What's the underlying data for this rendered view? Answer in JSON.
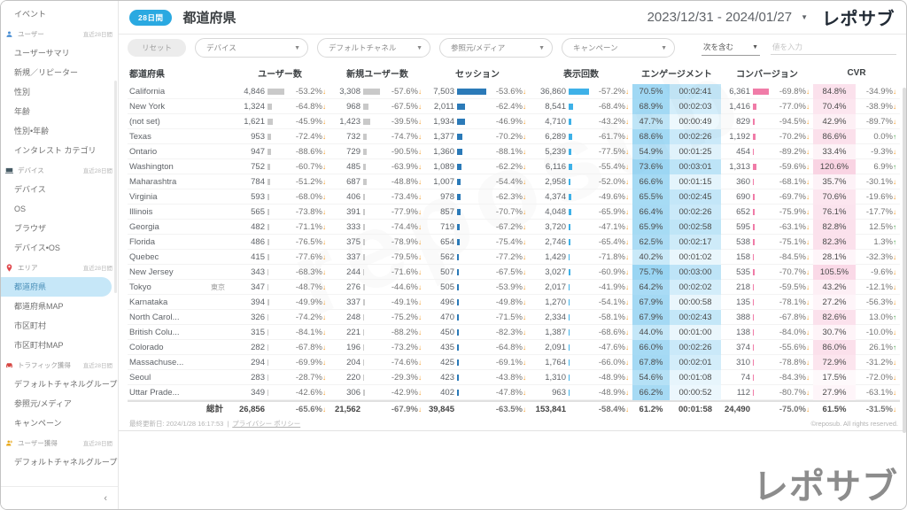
{
  "header": {
    "badge": "28日間",
    "title": "都道府県",
    "date_range": "2023/12/31 - 2024/01/27",
    "logo": "レポサブ"
  },
  "filters": {
    "reset": "リセット",
    "dropdowns": [
      "デバイス",
      "デフォルトチャネル",
      "参照元/メディア",
      "キャンペーン"
    ],
    "condition": "次を含む",
    "value_placeholder": "値を入力"
  },
  "sidebar": {
    "collapse": "‹",
    "items": [
      {
        "type": "link",
        "label": "イベント"
      },
      {
        "type": "section",
        "label": "ユーザー",
        "icon": "user-icon",
        "period": "直近28日間"
      },
      {
        "type": "link",
        "label": "ユーザーサマリ"
      },
      {
        "type": "link",
        "label": "新規／リピーター"
      },
      {
        "type": "link",
        "label": "性別"
      },
      {
        "type": "link",
        "label": "年齢"
      },
      {
        "type": "link",
        "label": "性別•年齢"
      },
      {
        "type": "link",
        "label": "インタレスト カテゴリ"
      },
      {
        "type": "section",
        "label": "デバイス",
        "icon": "device-icon",
        "period": "直近28日間"
      },
      {
        "type": "link",
        "label": "デバイス"
      },
      {
        "type": "link",
        "label": "OS"
      },
      {
        "type": "link",
        "label": "ブラウザ"
      },
      {
        "type": "link",
        "label": "デバイス•OS"
      },
      {
        "type": "section",
        "label": "エリア",
        "icon": "area-pin-icon",
        "period": "直近28日間"
      },
      {
        "type": "link",
        "label": "都道府県",
        "selected": true
      },
      {
        "type": "link",
        "label": "都道府県MAP"
      },
      {
        "type": "link",
        "label": "市区町村"
      },
      {
        "type": "link",
        "label": "市区町村MAP"
      },
      {
        "type": "section",
        "label": "トラフィック獲得",
        "icon": "traffic-icon",
        "period": "直近28日間"
      },
      {
        "type": "link",
        "label": "デフォルトチャネルグループ"
      },
      {
        "type": "link",
        "label": "参照元/メディア"
      },
      {
        "type": "link",
        "label": "キャンペーン"
      },
      {
        "type": "section",
        "label": "ユーザー獲得",
        "icon": "user-acquisition-icon",
        "period": "直近28日間"
      },
      {
        "type": "link",
        "label": "デフォルトチャネルグループ"
      }
    ]
  },
  "table": {
    "headers": {
      "state": "都道府県",
      "users": "ユーザー数",
      "new_users": "新規ユーザー数",
      "sessions": "セッション",
      "views": "表示回数",
      "engagement": "エンゲージメント",
      "conversion": "コンバージョン",
      "cvr": "CVR"
    },
    "rows": [
      {
        "name": "California",
        "users": "4,846",
        "users_d": "-53.2%",
        "new_users": "3,308",
        "new_d": "-57.6%",
        "sessions": "7,503",
        "sess_d": "-53.6%",
        "views": "36,860",
        "views_d": "-57.2%",
        "eng": "70.5%",
        "time": "00:02:41",
        "conv": "6,361",
        "conv_d": "-69.8%",
        "cvr": "84.8%",
        "cvr_d": "-34.9%",
        "cvr_dir": "down"
      },
      {
        "name": "New York",
        "users": "1,324",
        "users_d": "-64.8%",
        "new_users": "968",
        "new_d": "-67.5%",
        "sessions": "2,011",
        "sess_d": "-62.4%",
        "views": "8,541",
        "views_d": "-68.4%",
        "eng": "68.9%",
        "time": "00:02:03",
        "conv": "1,416",
        "conv_d": "-77.0%",
        "cvr": "70.4%",
        "cvr_d": "-38.9%",
        "cvr_dir": "down"
      },
      {
        "name": "(not set)",
        "users": "1,621",
        "users_d": "-45.9%",
        "new_users": "1,423",
        "new_d": "-39.5%",
        "sessions": "1,934",
        "sess_d": "-46.9%",
        "views": "4,710",
        "views_d": "-43.2%",
        "eng": "47.7%",
        "time": "00:00:49",
        "conv": "829",
        "conv_d": "-94.5%",
        "cvr": "42.9%",
        "cvr_d": "-89.7%",
        "cvr_dir": "down"
      },
      {
        "name": "Texas",
        "users": "953",
        "users_d": "-72.4%",
        "new_users": "732",
        "new_d": "-74.7%",
        "sessions": "1,377",
        "sess_d": "-70.2%",
        "views": "6,289",
        "views_d": "-61.7%",
        "eng": "68.6%",
        "time": "00:02:26",
        "conv": "1,192",
        "conv_d": "-70.2%",
        "cvr": "86.6%",
        "cvr_d": "0.0%",
        "cvr_dir": "up"
      },
      {
        "name": "Ontario",
        "users": "947",
        "users_d": "-88.6%",
        "new_users": "729",
        "new_d": "-90.5%",
        "sessions": "1,360",
        "sess_d": "-88.1%",
        "views": "5,239",
        "views_d": "-77.5%",
        "eng": "54.9%",
        "time": "00:01:25",
        "conv": "454",
        "conv_d": "-89.2%",
        "cvr": "33.4%",
        "cvr_d": "-9.3%",
        "cvr_dir": "down"
      },
      {
        "name": "Washington",
        "users": "752",
        "users_d": "-60.7%",
        "new_users": "485",
        "new_d": "-63.9%",
        "sessions": "1,089",
        "sess_d": "-62.2%",
        "views": "6,116",
        "views_d": "-55.4%",
        "eng": "73.6%",
        "time": "00:03:01",
        "conv": "1,313",
        "conv_d": "-59.6%",
        "cvr": "120.6%",
        "cvr_d": "6.9%",
        "cvr_dir": "up"
      },
      {
        "name": "Maharashtra",
        "users": "784",
        "users_d": "-51.2%",
        "new_users": "687",
        "new_d": "-48.8%",
        "sessions": "1,007",
        "sess_d": "-54.4%",
        "views": "2,958",
        "views_d": "-52.0%",
        "eng": "66.6%",
        "time": "00:01:15",
        "conv": "360",
        "conv_d": "-68.1%",
        "cvr": "35.7%",
        "cvr_d": "-30.1%",
        "cvr_dir": "down"
      },
      {
        "name": "Virginia",
        "users": "593",
        "users_d": "-68.0%",
        "new_users": "406",
        "new_d": "-73.4%",
        "sessions": "978",
        "sess_d": "-62.3%",
        "views": "4,374",
        "views_d": "-49.6%",
        "eng": "65.5%",
        "time": "00:02:45",
        "conv": "690",
        "conv_d": "-69.7%",
        "cvr": "70.6%",
        "cvr_d": "-19.6%",
        "cvr_dir": "down"
      },
      {
        "name": "Illinois",
        "users": "565",
        "users_d": "-73.8%",
        "new_users": "391",
        "new_d": "-77.9%",
        "sessions": "857",
        "sess_d": "-70.7%",
        "views": "4,048",
        "views_d": "-65.9%",
        "eng": "66.4%",
        "time": "00:02:26",
        "conv": "652",
        "conv_d": "-75.9%",
        "cvr": "76.1%",
        "cvr_d": "-17.7%",
        "cvr_dir": "down"
      },
      {
        "name": "Georgia",
        "users": "482",
        "users_d": "-71.1%",
        "new_users": "333",
        "new_d": "-74.4%",
        "sessions": "719",
        "sess_d": "-67.2%",
        "views": "3,720",
        "views_d": "-47.1%",
        "eng": "65.9%",
        "time": "00:02:58",
        "conv": "595",
        "conv_d": "-63.1%",
        "cvr": "82.8%",
        "cvr_d": "12.5%",
        "cvr_dir": "up"
      },
      {
        "name": "Florida",
        "users": "486",
        "users_d": "-76.5%",
        "new_users": "375",
        "new_d": "-78.9%",
        "sessions": "654",
        "sess_d": "-75.4%",
        "views": "2,746",
        "views_d": "-65.4%",
        "eng": "62.5%",
        "time": "00:02:17",
        "conv": "538",
        "conv_d": "-75.1%",
        "cvr": "82.3%",
        "cvr_d": "1.3%",
        "cvr_dir": "up"
      },
      {
        "name": "Quebec",
        "users": "415",
        "users_d": "-77.6%",
        "new_users": "337",
        "new_d": "-79.5%",
        "sessions": "562",
        "sess_d": "-77.2%",
        "views": "1,429",
        "views_d": "-71.8%",
        "eng": "40.2%",
        "time": "00:01:02",
        "conv": "158",
        "conv_d": "-84.5%",
        "cvr": "28.1%",
        "cvr_d": "-32.3%",
        "cvr_dir": "down"
      },
      {
        "name": "New Jersey",
        "users": "343",
        "users_d": "-68.3%",
        "new_users": "244",
        "new_d": "-71.6%",
        "sessions": "507",
        "sess_d": "-67.5%",
        "views": "3,027",
        "views_d": "-60.9%",
        "eng": "75.7%",
        "time": "00:03:00",
        "conv": "535",
        "conv_d": "-70.7%",
        "cvr": "105.5%",
        "cvr_d": "-9.6%",
        "cvr_dir": "down"
      },
      {
        "name": "Tokyo",
        "sub": "東京",
        "users": "347",
        "users_d": "-48.7%",
        "new_users": "276",
        "new_d": "-44.6%",
        "sessions": "505",
        "sess_d": "-53.9%",
        "views": "2,017",
        "views_d": "-41.9%",
        "eng": "64.2%",
        "time": "00:02:02",
        "conv": "218",
        "conv_d": "-59.5%",
        "cvr": "43.2%",
        "cvr_d": "-12.1%",
        "cvr_dir": "down"
      },
      {
        "name": "Karnataka",
        "users": "394",
        "users_d": "-49.9%",
        "new_users": "337",
        "new_d": "-49.1%",
        "sessions": "496",
        "sess_d": "-49.8%",
        "views": "1,270",
        "views_d": "-54.1%",
        "eng": "67.9%",
        "time": "00:00:58",
        "conv": "135",
        "conv_d": "-78.1%",
        "cvr": "27.2%",
        "cvr_d": "-56.3%",
        "cvr_dir": "down"
      },
      {
        "name": "North Carol...",
        "users": "326",
        "users_d": "-74.2%",
        "new_users": "248",
        "new_d": "-75.2%",
        "sessions": "470",
        "sess_d": "-71.5%",
        "views": "2,334",
        "views_d": "-58.1%",
        "eng": "67.9%",
        "time": "00:02:43",
        "conv": "388",
        "conv_d": "-67.8%",
        "cvr": "82.6%",
        "cvr_d": "13.0%",
        "cvr_dir": "up"
      },
      {
        "name": "British Colu...",
        "users": "315",
        "users_d": "-84.1%",
        "new_users": "221",
        "new_d": "-88.2%",
        "sessions": "450",
        "sess_d": "-82.3%",
        "views": "1,387",
        "views_d": "-68.6%",
        "eng": "44.0%",
        "time": "00:01:00",
        "conv": "138",
        "conv_d": "-84.0%",
        "cvr": "30.7%",
        "cvr_d": "-10.0%",
        "cvr_dir": "down"
      },
      {
        "name": "Colorado",
        "users": "282",
        "users_d": "-67.8%",
        "new_users": "196",
        "new_d": "-73.2%",
        "sessions": "435",
        "sess_d": "-64.8%",
        "views": "2,091",
        "views_d": "-47.6%",
        "eng": "66.0%",
        "time": "00:02:26",
        "conv": "374",
        "conv_d": "-55.6%",
        "cvr": "86.0%",
        "cvr_d": "26.1%",
        "cvr_dir": "up"
      },
      {
        "name": "Massachuse...",
        "users": "294",
        "users_d": "-69.9%",
        "new_users": "204",
        "new_d": "-74.6%",
        "sessions": "425",
        "sess_d": "-69.1%",
        "views": "1,764",
        "views_d": "-66.0%",
        "eng": "67.8%",
        "time": "00:02:01",
        "conv": "310",
        "conv_d": "-78.8%",
        "cvr": "72.9%",
        "cvr_d": "-31.2%",
        "cvr_dir": "down"
      },
      {
        "name": "Seoul",
        "users": "283",
        "users_d": "-28.7%",
        "new_users": "220",
        "new_d": "-29.3%",
        "sessions": "423",
        "sess_d": "-43.8%",
        "views": "1,310",
        "views_d": "-48.9%",
        "eng": "54.6%",
        "time": "00:01:08",
        "conv": "74",
        "conv_d": "-84.3%",
        "cvr": "17.5%",
        "cvr_d": "-72.0%",
        "cvr_dir": "down"
      },
      {
        "name": "Uttar Prade...",
        "users": "349",
        "users_d": "-42.6%",
        "new_users": "306",
        "new_d": "-42.9%",
        "sessions": "402",
        "sess_d": "-47.8%",
        "views": "963",
        "views_d": "-48.9%",
        "eng": "66.2%",
        "time": "00:00:52",
        "conv": "112",
        "conv_d": "-80.7%",
        "cvr": "27.9%",
        "cvr_d": "-63.1%",
        "cvr_dir": "down"
      }
    ],
    "total": {
      "name": "総計",
      "users": "26,856",
      "users_d": "-65.6%",
      "new_users": "21,562",
      "new_d": "-67.9%",
      "sessions": "39,845",
      "sess_d": "-63.5%",
      "views": "153,841",
      "views_d": "-58.4%",
      "eng": "61.2%",
      "time": "00:01:58",
      "conv": "24,490",
      "conv_d": "-75.0%",
      "cvr": "61.5%",
      "cvr_d": "-31.5%",
      "cvr_dir": "down"
    }
  },
  "footer": {
    "updated": "最終更新日: 2024/1/28 16:17:53",
    "separator": "|",
    "privacy": "プライバシー ポリシー",
    "copyright": "©reposub. All rights reserved."
  },
  "watermark": "reposub",
  "colors": {
    "badge_blue": "#2aa9e1",
    "bar_grey": "#c9c9c9",
    "bar_blue": "#2b7ab8",
    "bar_cyan": "#3eb1e8",
    "bar_pink": "#f07ca8",
    "eng_base": "73,180,233",
    "cvr_base": "236,111,163",
    "selected_bg": "#c6e7f8",
    "icon_colors": {
      "user-icon": "#4a8fd4",
      "device-icon": "#455a64",
      "area-pin-icon": "#e0474c",
      "traffic-icon": "#d64541",
      "user-acquisition-icon": "#e8a91c"
    }
  }
}
